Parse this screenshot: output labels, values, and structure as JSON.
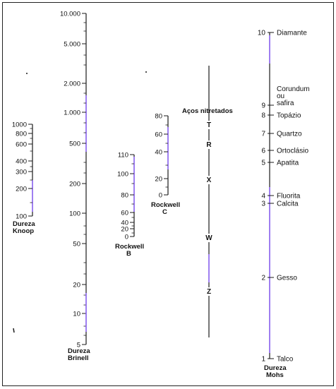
{
  "colors": {
    "ink": "#1a1a1a",
    "accent": "#8a5cff"
  },
  "scales": {
    "knoop": {
      "title_1": "Dureza",
      "title_2": "Knoop",
      "ticks": [
        "1000",
        "800",
        "600",
        "400",
        "300",
        "200",
        "100"
      ]
    },
    "brinell": {
      "title_1": "Dureza",
      "title_2": "Brinell",
      "ticks": [
        "10.000",
        "5.000",
        "2.000",
        "1.000",
        "500",
        "200",
        "100",
        "50",
        "20",
        "10",
        "5"
      ]
    },
    "rockwell_b": {
      "title_1": "Rockwell",
      "title_2": "B",
      "ticks": [
        "110",
        "100",
        "80",
        "60",
        "40",
        "20",
        "0"
      ]
    },
    "rockwell_c": {
      "title_1": "Rockwell",
      "title_2": "C",
      "ticks": [
        "80",
        "60",
        "40",
        "20",
        "0"
      ]
    },
    "nitrided": {
      "title": "Aços nitretados",
      "letters": [
        "T",
        "R",
        "X",
        "W",
        "Z"
      ]
    },
    "mohs": {
      "title_1": "Dureza",
      "title_2": "Mohs",
      "numbers": [
        "10",
        "9",
        "8",
        "7",
        "6",
        "5",
        "4",
        "3",
        "2",
        "1"
      ],
      "minerals": [
        "Diamante",
        "Corundum\nou\nsafira",
        "Topázio",
        "Quartzo",
        "Ortoclásio",
        "Apatita",
        "Fluorita",
        "Calcita",
        "Gesso",
        "Talco"
      ]
    }
  }
}
